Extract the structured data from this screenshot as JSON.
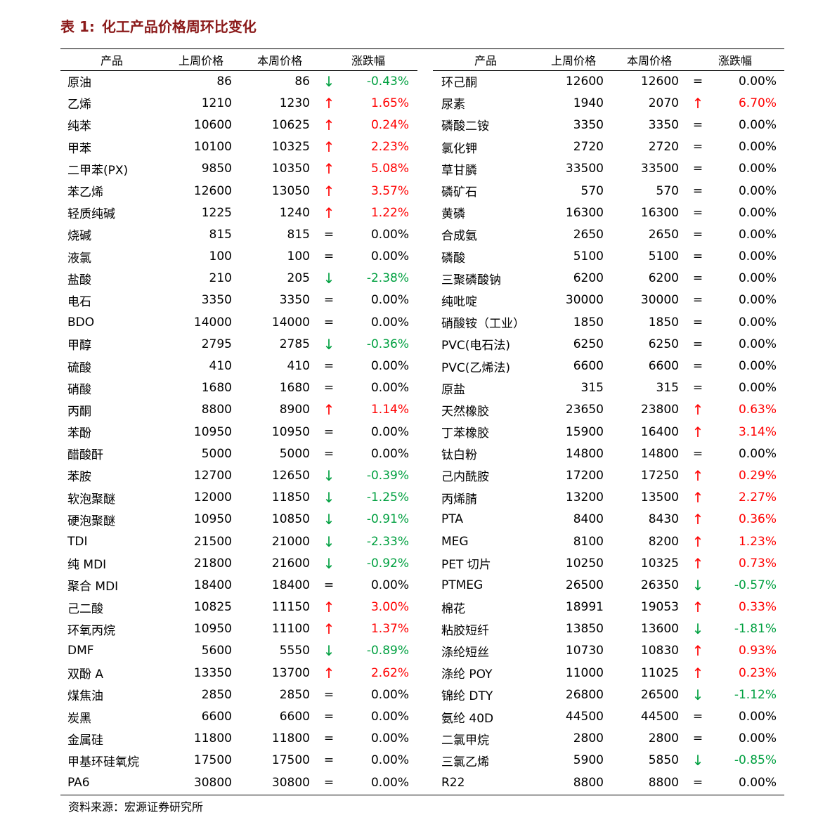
{
  "title": {
    "label": "表 1:",
    "text": "化工产品价格周环比变化"
  },
  "header": {
    "product": "产品",
    "last_week": "上周价格",
    "this_week": "本周价格",
    "change": "涨跌幅"
  },
  "colors": {
    "up": "#ff0000",
    "down": "#00a040",
    "flat": "#000000",
    "title": "#8b1a1a"
  },
  "left_rows": [
    {
      "name": "原油",
      "last": "86",
      "this": "86",
      "dir": "↓",
      "pct": "-0.43%"
    },
    {
      "name": "乙烯",
      "last": "1210",
      "this": "1230",
      "dir": "↑",
      "pct": "1.65%"
    },
    {
      "name": "纯苯",
      "last": "10600",
      "this": "10625",
      "dir": "↑",
      "pct": "0.24%"
    },
    {
      "name": "甲苯",
      "last": "10100",
      "this": "10325",
      "dir": "↑",
      "pct": "2.23%"
    },
    {
      "name": "二甲苯(PX)",
      "last": "9850",
      "this": "10350",
      "dir": "↑",
      "pct": "5.08%"
    },
    {
      "name": "苯乙烯",
      "last": "12600",
      "this": "13050",
      "dir": "↑",
      "pct": "3.57%"
    },
    {
      "name": "轻质纯碱",
      "last": "1225",
      "this": "1240",
      "dir": "↑",
      "pct": "1.22%"
    },
    {
      "name": "烧碱",
      "last": "815",
      "this": "815",
      "dir": "=",
      "pct": "0.00%"
    },
    {
      "name": "液氯",
      "last": "100",
      "this": "100",
      "dir": "=",
      "pct": "0.00%"
    },
    {
      "name": "盐酸",
      "last": "210",
      "this": "205",
      "dir": "↓",
      "pct": "-2.38%"
    },
    {
      "name": "电石",
      "last": "3350",
      "this": "3350",
      "dir": "=",
      "pct": "0.00%"
    },
    {
      "name": "BDO",
      "last": "14000",
      "this": "14000",
      "dir": "=",
      "pct": "0.00%"
    },
    {
      "name": "甲醇",
      "last": "2795",
      "this": "2785",
      "dir": "↓",
      "pct": "-0.36%"
    },
    {
      "name": "硫酸",
      "last": "410",
      "this": "410",
      "dir": "=",
      "pct": "0.00%"
    },
    {
      "name": "硝酸",
      "last": "1680",
      "this": "1680",
      "dir": "=",
      "pct": "0.00%"
    },
    {
      "name": "丙酮",
      "last": "8800",
      "this": "8900",
      "dir": "↑",
      "pct": "1.14%"
    },
    {
      "name": "苯酚",
      "last": "10950",
      "this": "10950",
      "dir": "=",
      "pct": "0.00%"
    },
    {
      "name": "醋酸酐",
      "last": "5000",
      "this": "5000",
      "dir": "=",
      "pct": "0.00%"
    },
    {
      "name": "苯胺",
      "last": "12700",
      "this": "12650",
      "dir": "↓",
      "pct": "-0.39%"
    },
    {
      "name": "软泡聚醚",
      "last": "12000",
      "this": "11850",
      "dir": "↓",
      "pct": "-1.25%"
    },
    {
      "name": "硬泡聚醚",
      "last": "10950",
      "this": "10850",
      "dir": "↓",
      "pct": "-0.91%"
    },
    {
      "name": "TDI",
      "last": "21500",
      "this": "21000",
      "dir": "↓",
      "pct": "-2.33%"
    },
    {
      "name": "纯 MDI",
      "last": "21800",
      "this": "21600",
      "dir": "↓",
      "pct": "-0.92%"
    },
    {
      "name": "聚合 MDI",
      "last": "18400",
      "this": "18400",
      "dir": "=",
      "pct": "0.00%"
    },
    {
      "name": "己二酸",
      "last": "10825",
      "this": "11150",
      "dir": "↑",
      "pct": "3.00%"
    },
    {
      "name": "环氧丙烷",
      "last": "10950",
      "this": "11100",
      "dir": "↑",
      "pct": "1.37%"
    },
    {
      "name": "DMF",
      "last": "5600",
      "this": "5550",
      "dir": "↓",
      "pct": "-0.89%"
    },
    {
      "name": "双酚 A",
      "last": "13350",
      "this": "13700",
      "dir": "↑",
      "pct": "2.62%"
    },
    {
      "name": "煤焦油",
      "last": "2850",
      "this": "2850",
      "dir": "=",
      "pct": "0.00%"
    },
    {
      "name": "炭黑",
      "last": "6600",
      "this": "6600",
      "dir": "=",
      "pct": "0.00%"
    },
    {
      "name": "金属硅",
      "last": "11800",
      "this": "11800",
      "dir": "=",
      "pct": "0.00%"
    },
    {
      "name": "甲基环硅氧烷",
      "last": "17500",
      "this": "17500",
      "dir": "=",
      "pct": "0.00%"
    },
    {
      "name": "PA6",
      "last": "30800",
      "this": "30800",
      "dir": "=",
      "pct": "0.00%"
    }
  ],
  "right_rows": [
    {
      "name": "环己酮",
      "last": "12600",
      "this": "12600",
      "dir": "=",
      "pct": "0.00%"
    },
    {
      "name": "尿素",
      "last": "1940",
      "this": "2070",
      "dir": "↑",
      "pct": "6.70%"
    },
    {
      "name": "磷酸二铵",
      "last": "3350",
      "this": "3350",
      "dir": "=",
      "pct": "0.00%"
    },
    {
      "name": "氯化钾",
      "last": "2720",
      "this": "2720",
      "dir": "=",
      "pct": "0.00%"
    },
    {
      "name": "草甘膦",
      "last": "33500",
      "this": "33500",
      "dir": "=",
      "pct": "0.00%"
    },
    {
      "name": "磷矿石",
      "last": "570",
      "this": "570",
      "dir": "=",
      "pct": "0.00%"
    },
    {
      "name": "黄磷",
      "last": "16300",
      "this": "16300",
      "dir": "=",
      "pct": "0.00%"
    },
    {
      "name": "合成氨",
      "last": "2650",
      "this": "2650",
      "dir": "=",
      "pct": "0.00%"
    },
    {
      "name": "磷酸",
      "last": "5100",
      "this": "5100",
      "dir": "=",
      "pct": "0.00%"
    },
    {
      "name": "三聚磷酸钠",
      "last": "6200",
      "this": "6200",
      "dir": "=",
      "pct": "0.00%"
    },
    {
      "name": "纯吡啶",
      "last": "30000",
      "this": "30000",
      "dir": "=",
      "pct": "0.00%"
    },
    {
      "name": "硝酸铵（工业）",
      "last": "1850",
      "this": "1850",
      "dir": "=",
      "pct": "0.00%"
    },
    {
      "name": "PVC(电石法)",
      "last": "6250",
      "this": "6250",
      "dir": "=",
      "pct": "0.00%"
    },
    {
      "name": "PVC(乙烯法)",
      "last": "6600",
      "this": "6600",
      "dir": "=",
      "pct": "0.00%"
    },
    {
      "name": "原盐",
      "last": "315",
      "this": "315",
      "dir": "=",
      "pct": "0.00%"
    },
    {
      "name": "天然橡胶",
      "last": "23650",
      "this": "23800",
      "dir": "↑",
      "pct": "0.63%"
    },
    {
      "name": "丁苯橡胶",
      "last": "15900",
      "this": "16400",
      "dir": "↑",
      "pct": "3.14%"
    },
    {
      "name": "钛白粉",
      "last": "14800",
      "this": "14800",
      "dir": "=",
      "pct": "0.00%"
    },
    {
      "name": "己内酰胺",
      "last": "17200",
      "this": "17250",
      "dir": "↑",
      "pct": "0.29%"
    },
    {
      "name": "丙烯腈",
      "last": "13200",
      "this": "13500",
      "dir": "↑",
      "pct": "2.27%"
    },
    {
      "name": "PTA",
      "last": "8400",
      "this": "8430",
      "dir": "↑",
      "pct": "0.36%"
    },
    {
      "name": "MEG",
      "last": "8100",
      "this": "8200",
      "dir": "↑",
      "pct": "1.23%"
    },
    {
      "name": "PET 切片",
      "last": "10250",
      "this": "10325",
      "dir": "↑",
      "pct": "0.73%"
    },
    {
      "name": "PTMEG",
      "last": "26500",
      "this": "26350",
      "dir": "↓",
      "pct": "-0.57%"
    },
    {
      "name": "棉花",
      "last": "18991",
      "this": "19053",
      "dir": "↑",
      "pct": "0.33%"
    },
    {
      "name": "粘胶短纤",
      "last": "13850",
      "this": "13600",
      "dir": "↓",
      "pct": "-1.81%"
    },
    {
      "name": "涤纶短丝",
      "last": "10730",
      "this": "10830",
      "dir": "↑",
      "pct": "0.93%"
    },
    {
      "name": "涤纶 POY",
      "last": "11000",
      "this": "11025",
      "dir": "↑",
      "pct": "0.23%"
    },
    {
      "name": "锦纶 DTY",
      "last": "26800",
      "this": "26500",
      "dir": "↓",
      "pct": "-1.12%"
    },
    {
      "name": "氨纶 40D",
      "last": "44500",
      "this": "44500",
      "dir": "=",
      "pct": "0.00%"
    },
    {
      "name": "二氯甲烷",
      "last": "2800",
      "this": "2800",
      "dir": "=",
      "pct": "0.00%"
    },
    {
      "name": "三氯乙烯",
      "last": "5900",
      "this": "5850",
      "dir": "↓",
      "pct": "-0.85%"
    },
    {
      "name": "R22",
      "last": "8800",
      "this": "8800",
      "dir": "=",
      "pct": "0.00%"
    }
  ],
  "source": "资料来源：宏源证券研究所"
}
